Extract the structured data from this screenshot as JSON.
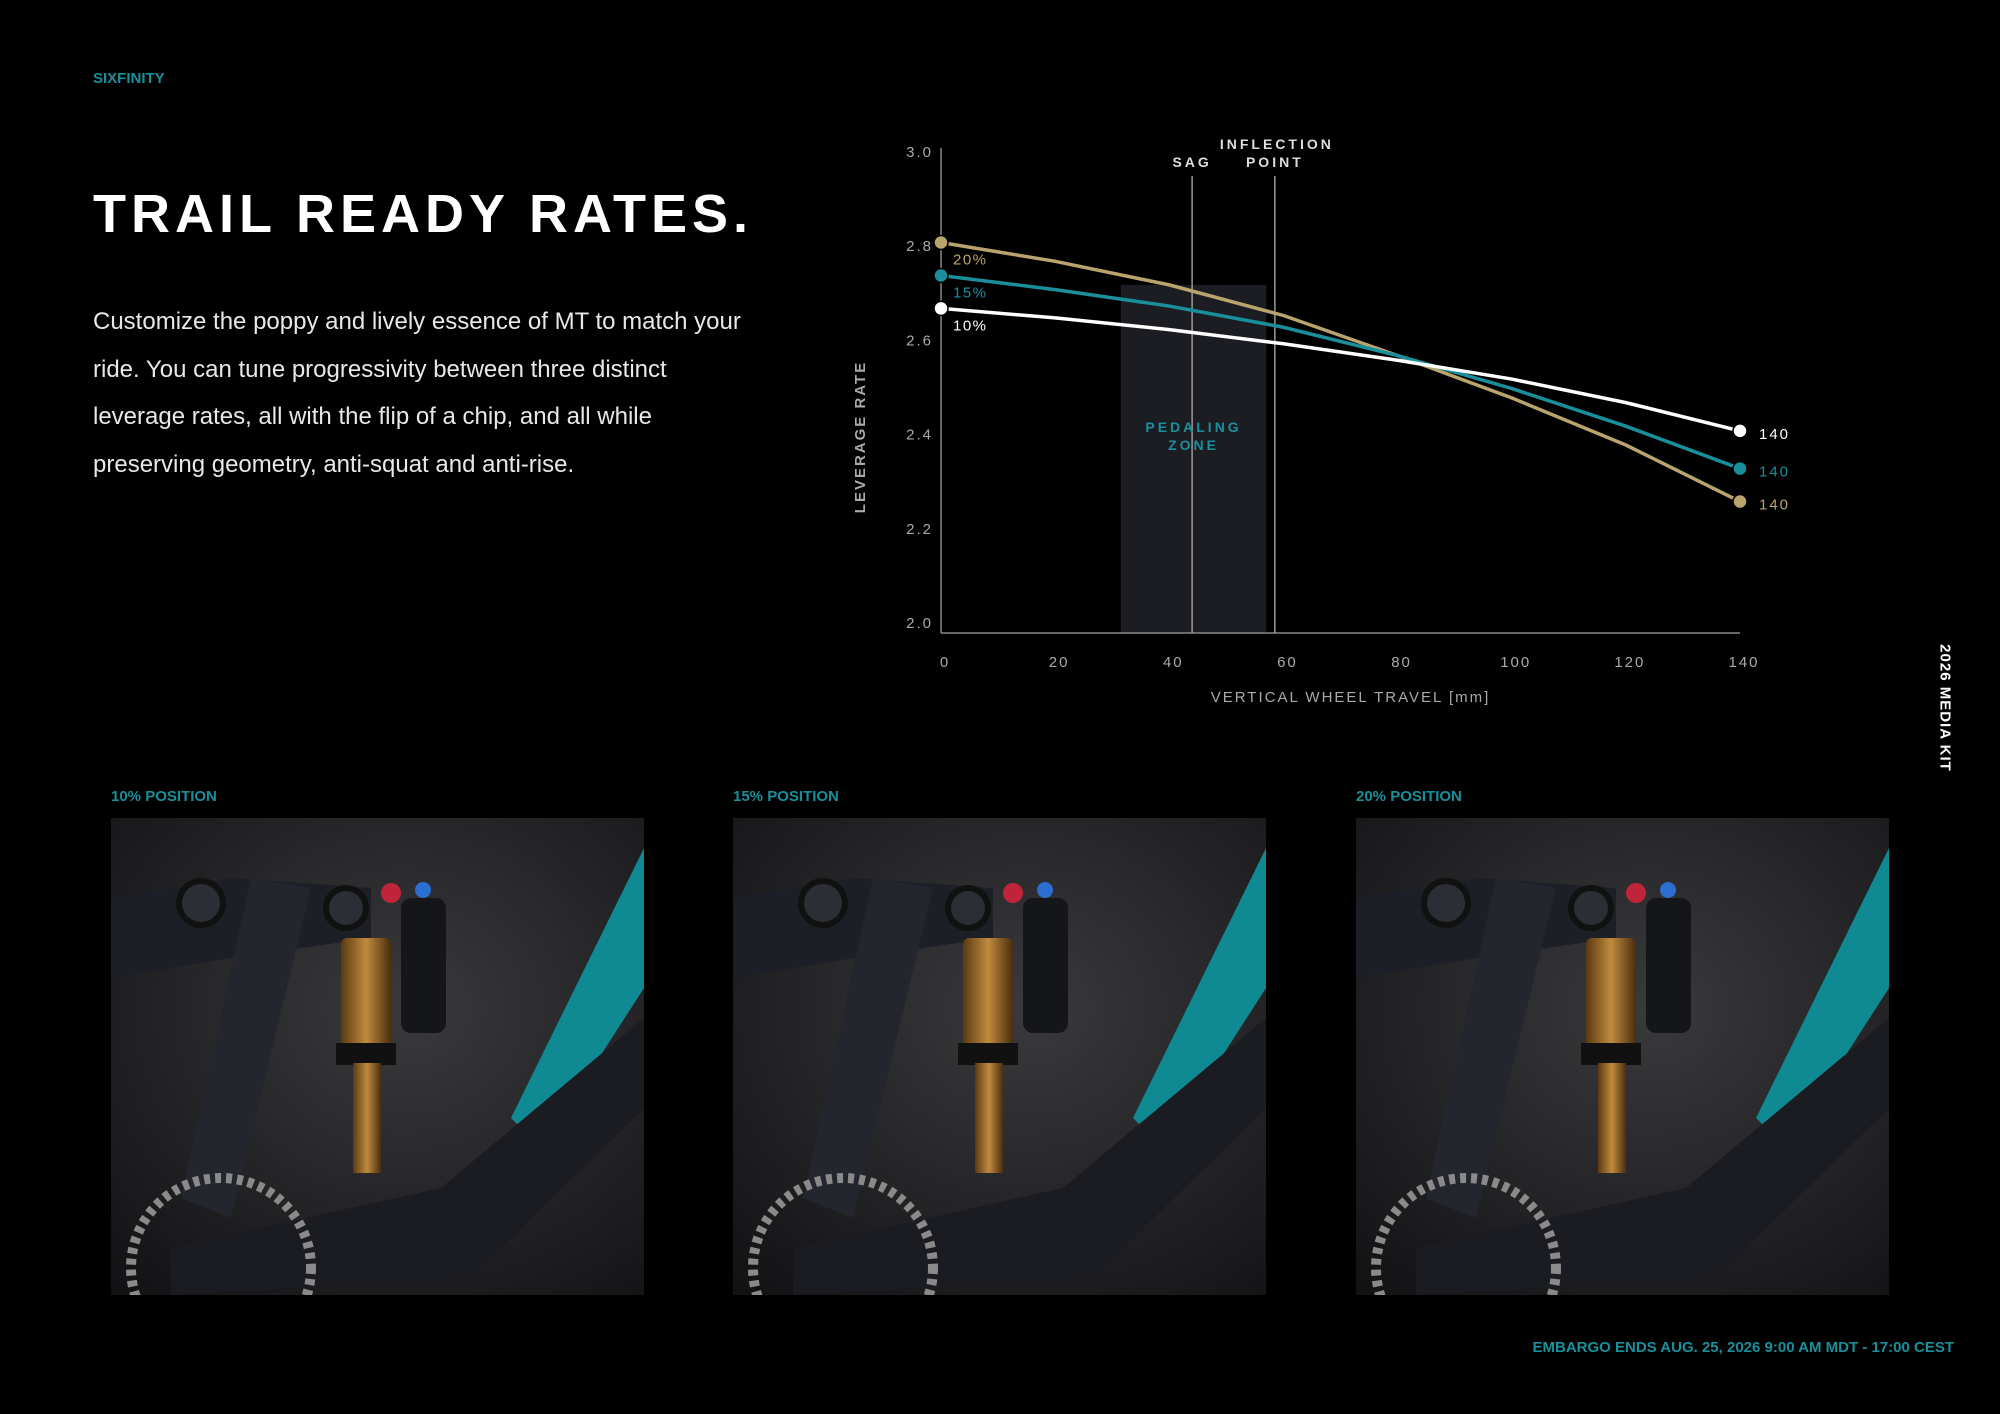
{
  "header": {
    "brand": "SIXFINITY"
  },
  "title": "TRAIL READY RATES.",
  "body": "Customize the poppy and lively essence of MT to match your ride. You can tune progressivity between three distinct leverage rates, all with the flip of a chip, and all while preserving geometry, anti-squat and anti-rise.",
  "chart_data": {
    "type": "line",
    "x": [
      0,
      20,
      40,
      60,
      80,
      100,
      120,
      140
    ],
    "series": [
      {
        "name": "10%",
        "color": "#ffffff",
        "values": [
          2.67,
          2.65,
          2.625,
          2.595,
          2.56,
          2.52,
          2.47,
          2.41
        ]
      },
      {
        "name": "15%",
        "color": "#1a8f9c",
        "values": [
          2.74,
          2.71,
          2.675,
          2.63,
          2.57,
          2.5,
          2.42,
          2.33
        ]
      },
      {
        "name": "20%",
        "color": "#b8a46c",
        "values": [
          2.81,
          2.77,
          2.72,
          2.655,
          2.57,
          2.48,
          2.38,
          2.26
        ]
      }
    ],
    "xlim": [
      0,
      140
    ],
    "xticks": [
      0,
      20,
      40,
      60,
      80,
      100,
      120,
      140
    ],
    "ylim": [
      2,
      3
    ],
    "yticks": [
      {
        "value": 2,
        "label": "2.0"
      },
      {
        "value": 2.2,
        "label": "2.2"
      },
      {
        "value": 2.4,
        "label": "2.4"
      },
      {
        "value": 2.6,
        "label": "2.6"
      },
      {
        "value": 2.8,
        "label": "2.8"
      },
      {
        "value": 3,
        "label": "3.0"
      }
    ],
    "xlabel": "VERTICAL WHEEL TRAVEL [mm]",
    "ylabel": "LEVERAGE RATE",
    "annotations": [
      {
        "text": "SAG",
        "x": 44
      },
      {
        "text": "INFLECTION POINT",
        "x": 58.5
      }
    ],
    "shaded_regions": [
      {
        "label": "PEDALING ZONE",
        "x": [
          31.5,
          57
        ],
        "y": [
          2,
          2.72
        ]
      }
    ]
  },
  "photos": [
    {
      "caption": "10% POSITION"
    },
    {
      "caption": "15% POSITION"
    },
    {
      "caption": "20% POSITION"
    }
  ],
  "side_label": "2026 MEDIA KIT",
  "footer": "EMBARGO ENDS AUG. 25, 2026 9:00 AM MDT - 17:00 CEST"
}
